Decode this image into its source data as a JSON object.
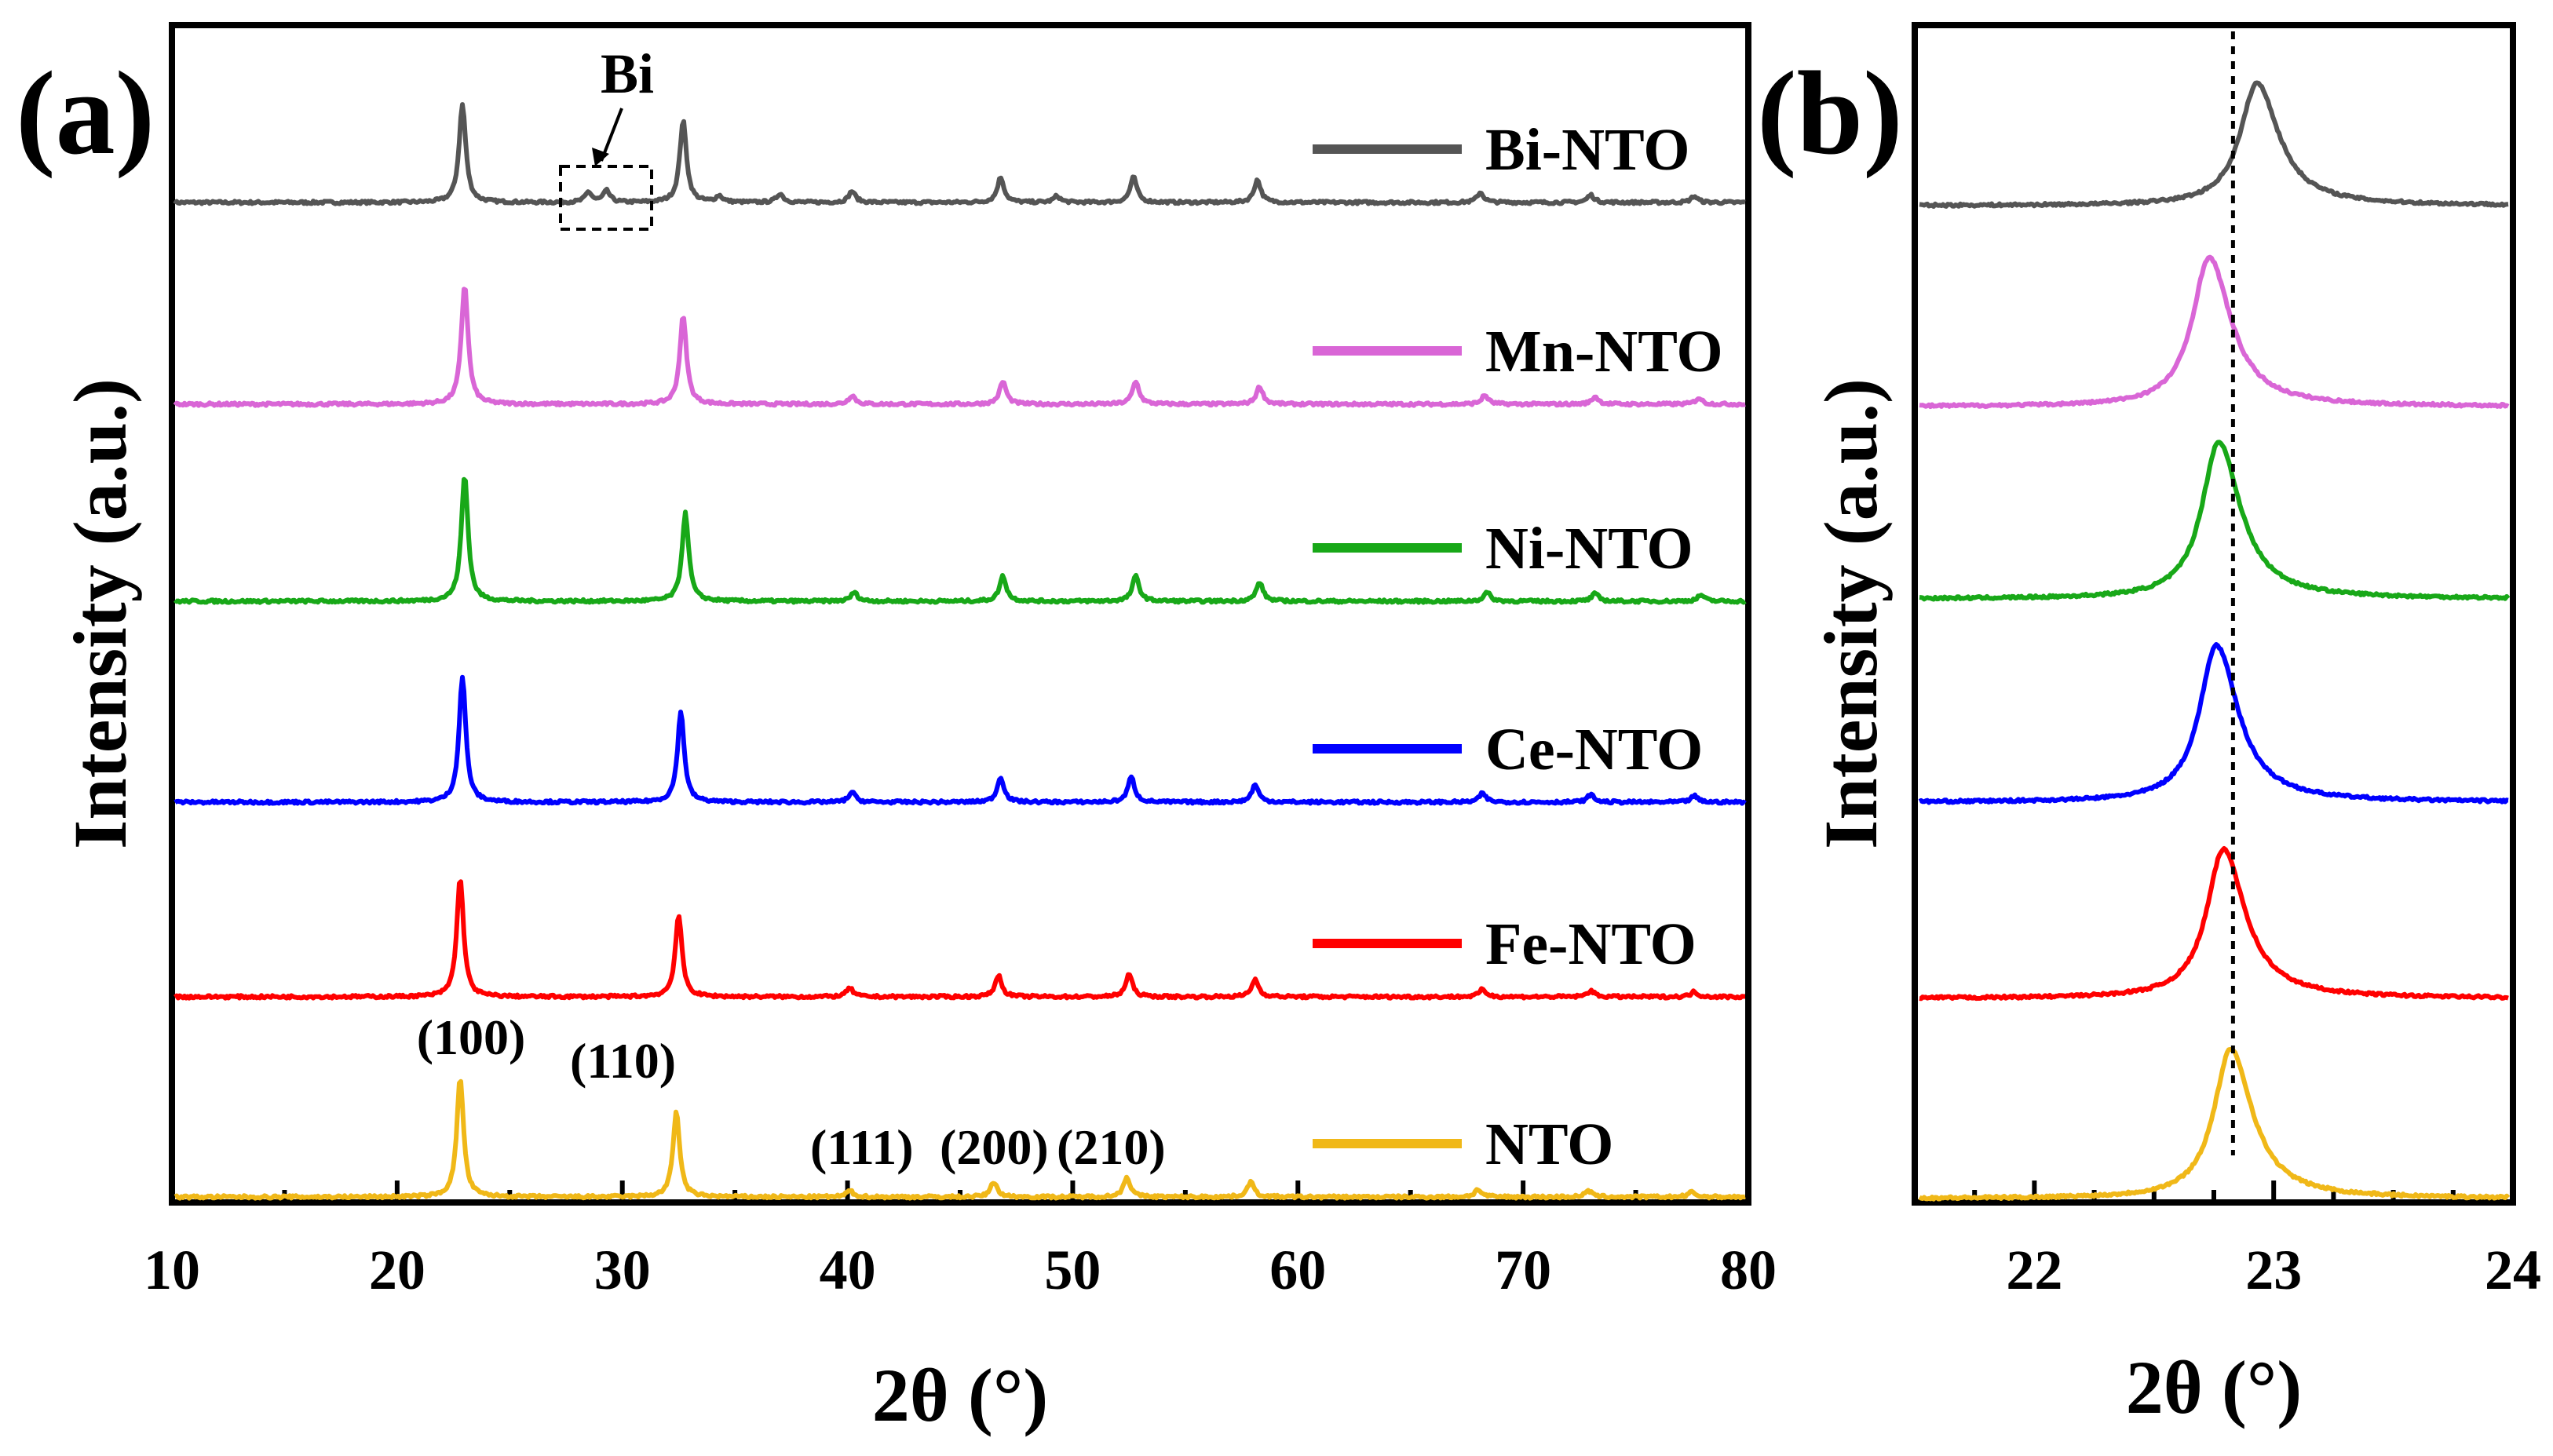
{
  "figure": {
    "panels": [
      "(a)",
      "(b)"
    ]
  },
  "chart_data": [
    {
      "type": "line",
      "panel_label": "(a)",
      "xlabel": "2θ (°)",
      "ylabel": "Intensity (a.u.)",
      "xlim": [
        10,
        80
      ],
      "xticks": [
        10,
        20,
        30,
        40,
        50,
        60,
        70,
        80
      ],
      "grid": false,
      "legend": "inline-right",
      "series": [
        {
          "name": "Bi-NTO",
          "color": "#555555",
          "peaks": [
            [
              22.9,
              78
            ],
            [
              28.5,
              8
            ],
            [
              29.3,
              9
            ],
            [
              32.7,
              65
            ],
            [
              34.3,
              5
            ],
            [
              37.0,
              7
            ],
            [
              40.2,
              9
            ],
            [
              46.8,
              20
            ],
            [
              49.3,
              5
            ],
            [
              52.7,
              20
            ],
            [
              58.2,
              18
            ],
            [
              68.1,
              8
            ],
            [
              73.0,
              6
            ],
            [
              77.6,
              5
            ]
          ]
        },
        {
          "name": "Mn-NTO",
          "color": "#d966d6",
          "peaks": [
            [
              23.0,
              95
            ],
            [
              32.7,
              70
            ],
            [
              40.2,
              7
            ],
            [
              46.9,
              18
            ],
            [
              52.8,
              18
            ],
            [
              58.3,
              14
            ],
            [
              68.3,
              7
            ],
            [
              73.2,
              6
            ],
            [
              77.8,
              5
            ]
          ]
        },
        {
          "name": "Ni-NTO",
          "color": "#18a818",
          "peaks": [
            [
              23.0,
              100
            ],
            [
              32.8,
              70
            ],
            [
              40.3,
              7
            ],
            [
              46.9,
              20
            ],
            [
              52.8,
              20
            ],
            [
              58.3,
              15
            ],
            [
              68.4,
              7
            ],
            [
              73.2,
              6
            ],
            [
              77.9,
              5
            ]
          ]
        },
        {
          "name": "Ce-NTO",
          "color": "#0000ff",
          "peaks": [
            [
              22.9,
              100
            ],
            [
              32.6,
              72
            ],
            [
              40.2,
              8
            ],
            [
              46.8,
              20
            ],
            [
              52.6,
              20
            ],
            [
              58.1,
              14
            ],
            [
              68.2,
              7
            ],
            [
              73.0,
              6
            ],
            [
              77.6,
              5
            ]
          ]
        },
        {
          "name": "Fe-NTO",
          "color": "#ff0000",
          "peaks": [
            [
              22.8,
              95
            ],
            [
              32.5,
              65
            ],
            [
              40.1,
              7
            ],
            [
              46.7,
              17
            ],
            [
              52.5,
              18
            ],
            [
              58.1,
              14
            ],
            [
              68.2,
              6
            ],
            [
              73.0,
              5
            ],
            [
              77.6,
              4
            ]
          ]
        },
        {
          "name": "NTO",
          "color": "#f0b818",
          "peaks": [
            [
              22.8,
              95
            ],
            [
              32.4,
              68
            ],
            [
              40.1,
              5
            ],
            [
              46.5,
              12
            ],
            [
              52.4,
              16
            ],
            [
              57.9,
              12
            ],
            [
              68.0,
              6
            ],
            [
              72.9,
              5
            ],
            [
              77.5,
              4
            ]
          ]
        }
      ],
      "annotations": [
        {
          "text": "Bi",
          "x": 29.0,
          "series": "Bi-NTO"
        },
        {
          "text": "(100)",
          "x": 22.8,
          "series": "NTO"
        },
        {
          "text": "(110)",
          "x": 32.4,
          "series": "NTO"
        },
        {
          "text": "(111)",
          "x": 40.1,
          "series": "NTO"
        },
        {
          "text": "(200)",
          "x": 46.5,
          "series": "NTO"
        },
        {
          "text": "(210)",
          "x": 52.4,
          "series": "NTO"
        }
      ]
    },
    {
      "type": "line",
      "panel_label": "(b)",
      "xlabel": "2θ (°)",
      "ylabel": "Intensity (a.u.)",
      "xlim": [
        21.5,
        24
      ],
      "xticks": [
        22,
        23,
        24
      ],
      "grid": false,
      "reference_line_x": 22.83,
      "series": [
        {
          "name": "Bi-NTO",
          "color": "#555555",
          "peak_center": 22.93,
          "peak_height": 78
        },
        {
          "name": "Mn-NTO",
          "color": "#d966d6",
          "peak_center": 22.73,
          "peak_height": 95
        },
        {
          "name": "Ni-NTO",
          "color": "#18a818",
          "peak_center": 22.77,
          "peak_height": 100
        },
        {
          "name": "Ce-NTO",
          "color": "#0000ff",
          "peak_center": 22.76,
          "peak_height": 100
        },
        {
          "name": "Fe-NTO",
          "color": "#ff0000",
          "peak_center": 22.79,
          "peak_height": 95
        },
        {
          "name": "NTO",
          "color": "#f0b818",
          "peak_center": 22.82,
          "peak_height": 95
        }
      ]
    }
  ]
}
